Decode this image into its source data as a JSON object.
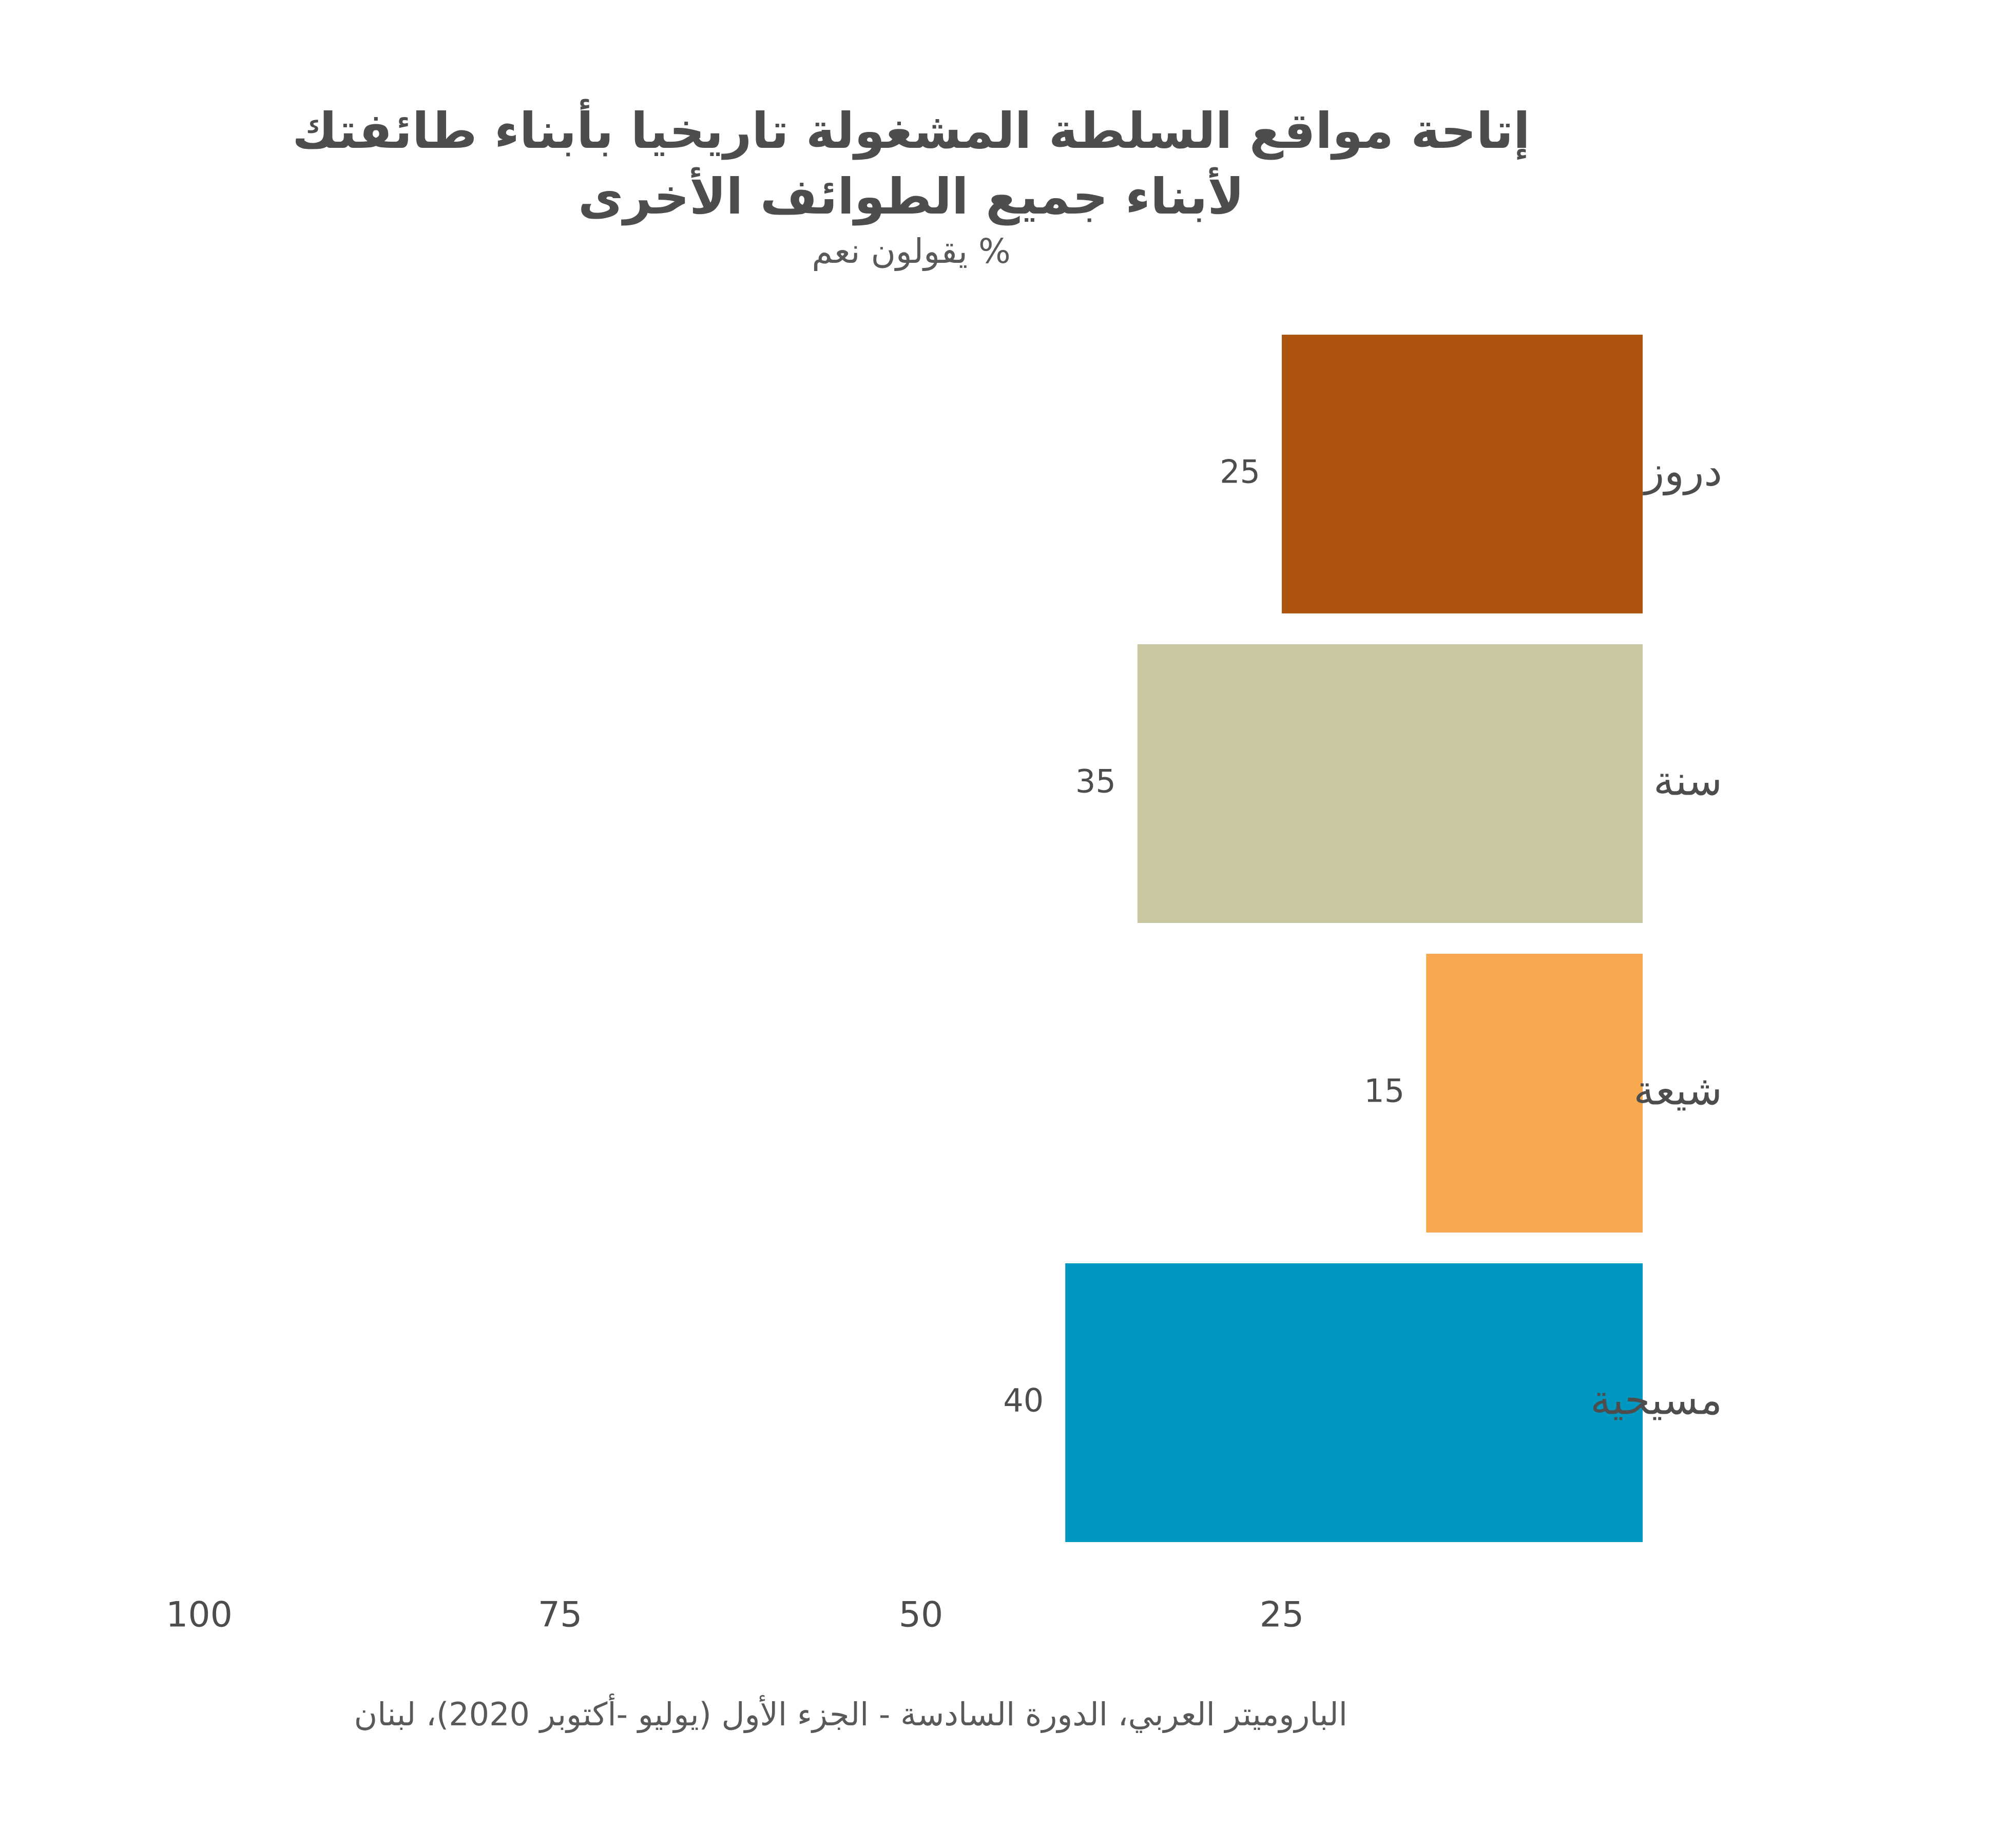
{
  "title_line1": "إتاحة مواقع السلطة المشغولة تاريخيا بأبناء طائفتك",
  "title_line2": "لأبناء جميع الطوائف الأخرى",
  "subtitle": "% يقولون نعم",
  "source": "الباروميتر العربي، الدورة السادسة - الجزء الأول (يوليو -أكتوبر 2020)، لبنان",
  "chart_data": {
    "type": "bar",
    "orientation": "horizontal",
    "x_reversed": true,
    "categories": [
      "دروز",
      "سنة",
      "شيعة",
      "مسيحية"
    ],
    "values": [
      25,
      35,
      15,
      40
    ],
    "colors": [
      "#ad5410",
      "#c9c7a1",
      "#f8a94f",
      "#0098c0"
    ],
    "xlim": [
      0,
      100
    ],
    "x_ticks": [
      "25",
      "50",
      "75",
      "100"
    ],
    "data_labels": [
      "25",
      "35",
      "15",
      "40"
    ],
    "grid": false,
    "legend": "none"
  }
}
